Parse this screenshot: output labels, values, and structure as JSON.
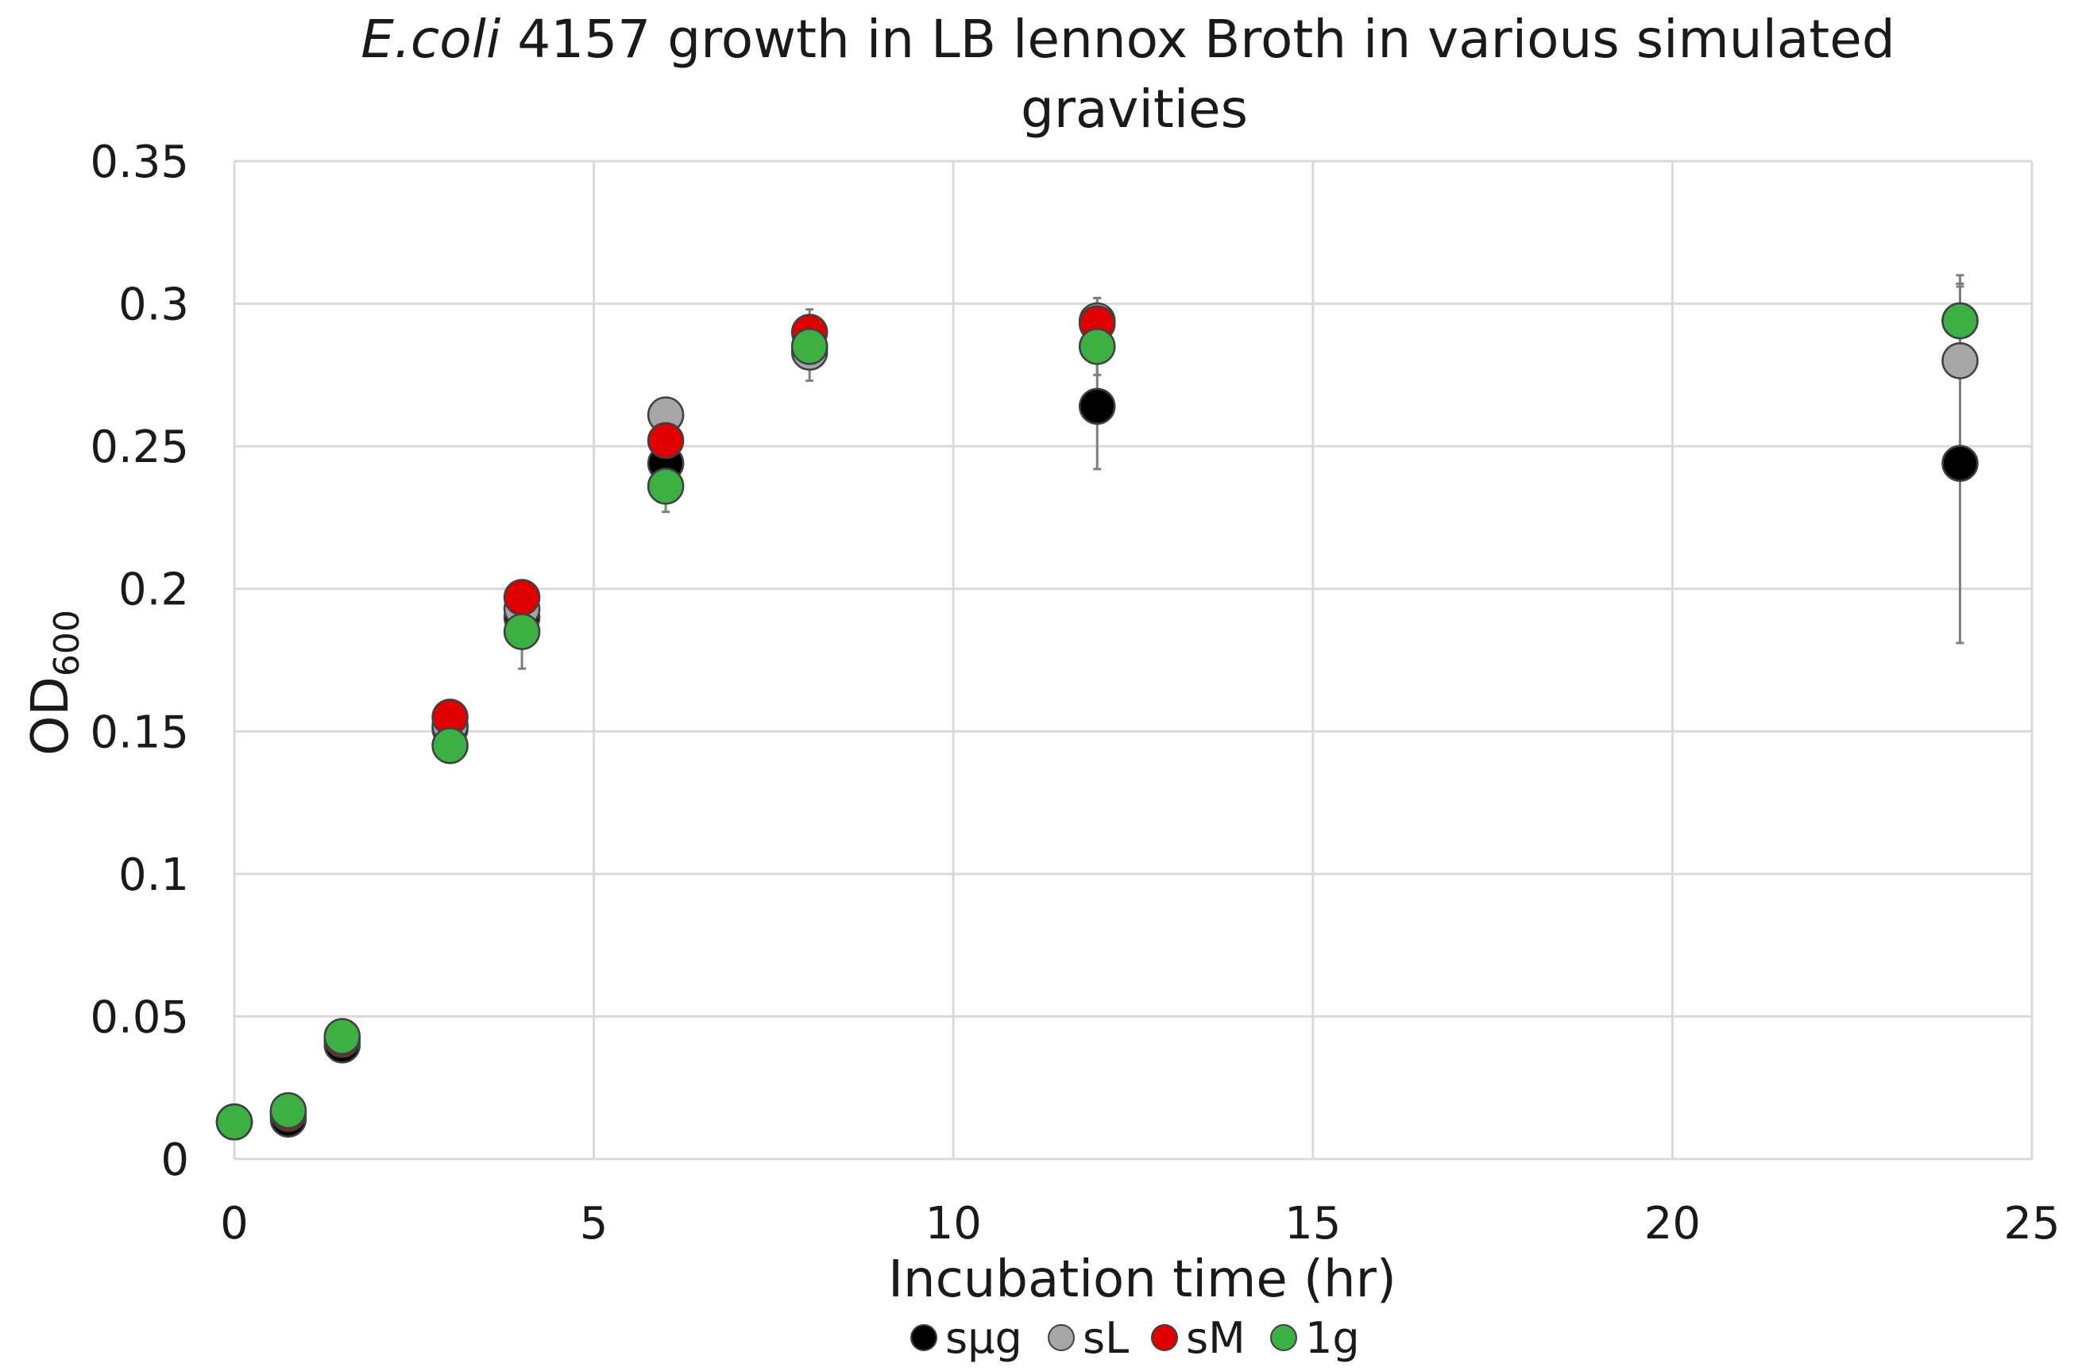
{
  "chart_data": {
    "type": "scatter",
    "title_italic": "E.coli",
    "title_rest_line1": " 4157  growth  in LB lennox Broth in various simulated",
    "title_line2": "gravities",
    "xlabel": "Incubation time (hr)",
    "ylabel_main": "OD",
    "ylabel_sub": "600",
    "xlim": [
      0,
      25
    ],
    "ylim": [
      0,
      0.35
    ],
    "xticks": [
      "0",
      "5",
      "10",
      "15",
      "20",
      "25"
    ],
    "yticks": [
      "0",
      "0.05",
      "0.1",
      "0.15",
      "0.2",
      "0.25",
      "0.3",
      "0.35"
    ],
    "grid": true,
    "legend_position": "bottom",
    "series": [
      {
        "name": "sμg",
        "color": "#000000",
        "points": [
          {
            "x": 0,
            "y": 0.013,
            "err": 0.0
          },
          {
            "x": 0.75,
            "y": 0.014,
            "err": 0.001
          },
          {
            "x": 1.5,
            "y": 0.04,
            "err": 0.002
          },
          {
            "x": 3,
            "y": 0.151,
            "err": 0.004
          },
          {
            "x": 4,
            "y": 0.19,
            "err": 0.006
          },
          {
            "x": 6,
            "y": 0.244,
            "err": 0.005
          },
          {
            "x": 8,
            "y": 0.285,
            "err": 0.004
          },
          {
            "x": 12,
            "y": 0.264,
            "err": 0.022
          },
          {
            "x": 24,
            "y": 0.244,
            "err": 0.063
          }
        ]
      },
      {
        "name": "sL",
        "color": "#a6a6a6",
        "points": [
          {
            "x": 0,
            "y": 0.013,
            "err": 0.0
          },
          {
            "x": 0.75,
            "y": 0.016,
            "err": 0.001
          },
          {
            "x": 1.5,
            "y": 0.042,
            "err": 0.002
          },
          {
            "x": 3,
            "y": 0.152,
            "err": 0.004
          },
          {
            "x": 4,
            "y": 0.193,
            "err": 0.005
          },
          {
            "x": 6,
            "y": 0.261,
            "err": 0.004
          },
          {
            "x": 8,
            "y": 0.283,
            "err": 0.01
          },
          {
            "x": 12,
            "y": 0.294,
            "err": 0.008
          },
          {
            "x": 24,
            "y": 0.28,
            "err": 0.03
          }
        ]
      },
      {
        "name": "sM",
        "color": "#e00000",
        "points": [
          {
            "x": 0,
            "y": 0.013,
            "err": 0.0
          },
          {
            "x": 0.75,
            "y": 0.016,
            "err": 0.001
          },
          {
            "x": 1.5,
            "y": 0.042,
            "err": 0.002
          },
          {
            "x": 3,
            "y": 0.155,
            "err": 0.006
          },
          {
            "x": 4,
            "y": 0.197,
            "err": 0.004
          },
          {
            "x": 6,
            "y": 0.252,
            "err": 0.004
          },
          {
            "x": 8,
            "y": 0.29,
            "err": 0.008
          },
          {
            "x": 12,
            "y": 0.293,
            "err": 0.009
          },
          {
            "x": 24,
            "y": 0.294,
            "err": 0.012
          }
        ]
      },
      {
        "name": "1g",
        "color": "#3cb043",
        "points": [
          {
            "x": 0,
            "y": 0.013,
            "err": 0.0
          },
          {
            "x": 0.75,
            "y": 0.017,
            "err": 0.001
          },
          {
            "x": 1.5,
            "y": 0.043,
            "err": 0.002
          },
          {
            "x": 3,
            "y": 0.145,
            "err": 0.004
          },
          {
            "x": 4,
            "y": 0.185,
            "err": 0.013
          },
          {
            "x": 6,
            "y": 0.236,
            "err": 0.009
          },
          {
            "x": 8,
            "y": 0.285,
            "err": 0.006
          },
          {
            "x": 12,
            "y": 0.285,
            "err": 0.01
          },
          {
            "x": 24,
            "y": 0.294,
            "err": 0.013
          }
        ]
      }
    ]
  }
}
